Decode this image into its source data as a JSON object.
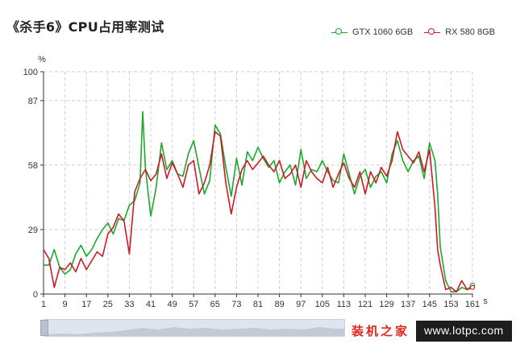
{
  "page": {
    "title": "《杀手6》CPU占用率测试"
  },
  "chart_data": {
    "type": "line",
    "title": "《杀手6》CPU占用率测试",
    "xlabel": "s",
    "ylabel": "%",
    "ylim": [
      0,
      100
    ],
    "xlim": [
      1,
      161
    ],
    "yticks": [
      0,
      29,
      58,
      87,
      100
    ],
    "xticks": [
      1,
      9,
      17,
      25,
      33,
      41,
      49,
      57,
      65,
      73,
      81,
      89,
      97,
      105,
      113,
      121,
      129,
      137,
      145,
      153,
      161
    ],
    "grid": true,
    "legend_position": "top-right",
    "series": [
      {
        "name": "GTX 1060 6GB",
        "color": "#1aa82e",
        "x": [
          1,
          3,
          5,
          7,
          9,
          11,
          13,
          15,
          17,
          19,
          21,
          23,
          25,
          27,
          29,
          31,
          33,
          35,
          37,
          38,
          39,
          41,
          43,
          45,
          47,
          49,
          51,
          53,
          55,
          57,
          59,
          61,
          63,
          65,
          67,
          69,
          71,
          73,
          75,
          77,
          79,
          81,
          83,
          85,
          87,
          89,
          91,
          93,
          95,
          97,
          99,
          101,
          103,
          105,
          107,
          109,
          111,
          113,
          115,
          117,
          119,
          121,
          123,
          125,
          127,
          129,
          131,
          133,
          135,
          137,
          139,
          141,
          143,
          145,
          147,
          148,
          149,
          151,
          153,
          155,
          157,
          159,
          161
        ],
        "values": [
          13,
          13,
          20,
          12,
          9,
          11,
          18,
          22,
          17,
          20,
          25,
          29,
          32,
          27,
          34,
          33,
          40,
          42,
          50,
          82,
          57,
          35,
          48,
          68,
          56,
          60,
          54,
          53,
          63,
          69,
          57,
          45,
          51,
          76,
          72,
          57,
          44,
          61,
          49,
          64,
          60,
          66,
          61,
          57,
          60,
          50,
          55,
          58,
          49,
          65,
          52,
          56,
          55,
          60,
          55,
          51,
          50,
          63,
          54,
          45,
          53,
          56,
          48,
          53,
          55,
          50,
          63,
          69,
          60,
          55,
          60,
          62,
          52,
          68,
          60,
          45,
          21,
          6,
          1,
          1,
          3,
          2,
          4
        ]
      },
      {
        "name": "RX 580 8GB",
        "color": "#cc1b24",
        "x": [
          1,
          3,
          5,
          7,
          9,
          11,
          13,
          15,
          17,
          19,
          21,
          23,
          25,
          27,
          29,
          31,
          33,
          35,
          37,
          39,
          41,
          43,
          45,
          47,
          49,
          51,
          53,
          55,
          57,
          59,
          61,
          63,
          65,
          67,
          69,
          71,
          73,
          75,
          77,
          79,
          81,
          83,
          85,
          87,
          89,
          91,
          93,
          95,
          97,
          99,
          101,
          103,
          105,
          107,
          109,
          111,
          113,
          115,
          117,
          119,
          121,
          123,
          125,
          127,
          129,
          131,
          133,
          135,
          137,
          139,
          141,
          143,
          145,
          147,
          148,
          149,
          151,
          153,
          155,
          157,
          159,
          161
        ],
        "values": [
          20,
          16,
          3,
          12,
          11,
          14,
          10,
          16,
          11,
          15,
          19,
          17,
          27,
          30,
          36,
          33,
          18,
          46,
          52,
          56,
          51,
          54,
          63,
          52,
          59,
          54,
          48,
          58,
          60,
          45,
          50,
          58,
          73,
          71,
          50,
          36,
          48,
          56,
          60,
          56,
          59,
          62,
          58,
          55,
          60,
          52,
          54,
          58,
          48,
          60,
          55,
          52,
          50,
          57,
          48,
          54,
          59,
          52,
          48,
          55,
          45,
          55,
          50,
          57,
          53,
          60,
          73,
          65,
          62,
          59,
          64,
          55,
          65,
          39,
          20,
          13,
          2,
          3,
          1,
          6,
          2,
          3
        ]
      }
    ]
  },
  "watermark": {
    "brand_cn": "装机之家",
    "url": "www.lotpc.com"
  }
}
